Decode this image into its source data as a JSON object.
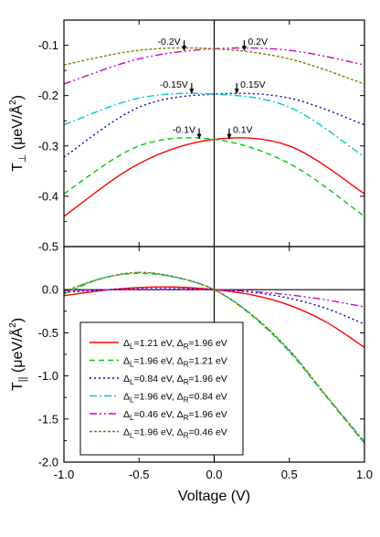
{
  "chart_data": [
    {
      "type": "line",
      "title": "",
      "xlabel": "",
      "ylabel": "T⊥ (μeV/Å²)",
      "ylabel_parts": {
        "main": "T",
        "sub": "⊥",
        "unit": " (μeV/Å",
        "sup": "2",
        "close": ")"
      },
      "xlim": [
        -1.0,
        1.0
      ],
      "ylim": [
        -0.5,
        -0.05
      ],
      "yticks": [
        -0.1,
        -0.2,
        -0.3,
        -0.4,
        -0.5
      ],
      "ytick_labels": [
        "-0.1",
        "-0.2",
        "-0.3",
        "-0.4",
        "-0.5"
      ],
      "x": [
        -1.0,
        -0.5,
        0.0,
        0.5,
        1.0
      ],
      "series": [
        {
          "id": "s1",
          "values": [
            -0.44,
            -0.335,
            -0.287,
            -0.3,
            -0.395
          ]
        },
        {
          "id": "s2",
          "values": [
            -0.395,
            -0.3,
            -0.287,
            -0.335,
            -0.44
          ]
        },
        {
          "id": "s3",
          "values": [
            -0.322,
            -0.223,
            -0.197,
            -0.205,
            -0.258
          ]
        },
        {
          "id": "s4",
          "values": [
            -0.258,
            -0.205,
            -0.197,
            -0.223,
            -0.322
          ]
        },
        {
          "id": "s5",
          "values": [
            -0.177,
            -0.127,
            -0.107,
            -0.11,
            -0.139
          ]
        },
        {
          "id": "s6",
          "values": [
            -0.139,
            -0.11,
            -0.107,
            -0.127,
            -0.177
          ]
        }
      ],
      "annotations": [
        {
          "text": "-0.2V",
          "x": -0.2,
          "y": -0.112,
          "side": "left"
        },
        {
          "text": "0.2V",
          "x": 0.2,
          "y": -0.112,
          "side": "right"
        },
        {
          "text": "-0.15V",
          "x": -0.15,
          "y": -0.197,
          "side": "left"
        },
        {
          "text": "0.15V",
          "x": 0.15,
          "y": -0.197,
          "side": "right"
        },
        {
          "text": "-0.1V",
          "x": -0.1,
          "y": -0.287,
          "side": "left"
        },
        {
          "text": "0.1V",
          "x": 0.1,
          "y": -0.287,
          "side": "right"
        }
      ]
    },
    {
      "type": "line",
      "title": "",
      "xlabel": "Voltage (V)",
      "ylabel": "T|| (μeV/Å²)",
      "ylabel_parts": {
        "main": "T",
        "sub": "||",
        "unit": " (μeV/Å",
        "sup": "2",
        "close": ")"
      },
      "xlim": [
        -1.0,
        1.0
      ],
      "ylim": [
        -2.0,
        0.5
      ],
      "xticks": [
        -1.0,
        -0.5,
        0.0,
        0.5,
        1.0
      ],
      "xtick_labels": [
        "-1.0",
        "-0.5",
        "0.0",
        "0.5",
        "1.0"
      ],
      "yticks": [
        0.0,
        -0.5,
        -1.0,
        -1.5,
        -2.0
      ],
      "ytick_labels": [
        "0.0",
        "-0.5",
        "-1.0",
        "-1.5",
        "-2.0"
      ],
      "x": [
        -1.0,
        -0.75,
        -0.5,
        -0.25,
        0.0,
        0.25,
        0.5,
        0.75,
        1.0
      ],
      "series": [
        {
          "id": "s1",
          "values": [
            -0.07,
            -0.01,
            0.025,
            0.03,
            0.0,
            -0.06,
            -0.18,
            -0.38,
            -0.67
          ]
        },
        {
          "id": "s2",
          "values": [
            -0.05,
            0.13,
            0.19,
            0.14,
            0.0,
            -0.3,
            -0.72,
            -1.25,
            -1.78
          ]
        },
        {
          "id": "s3",
          "values": [
            -0.03,
            -0.005,
            0.01,
            0.01,
            0.0,
            -0.03,
            -0.1,
            -0.22,
            -0.4
          ]
        },
        {
          "id": "s4",
          "values": [
            -0.02,
            0.13,
            0.2,
            0.14,
            0.0,
            -0.29,
            -0.71,
            -1.24,
            -1.76
          ]
        },
        {
          "id": "s5",
          "values": [
            -0.01,
            -0.002,
            0.004,
            0.004,
            0.0,
            -0.02,
            -0.06,
            -0.12,
            -0.2
          ]
        },
        {
          "id": "s6",
          "values": [
            -0.02,
            0.13,
            0.2,
            0.145,
            0.0,
            -0.29,
            -0.7,
            -1.24,
            -1.78
          ]
        }
      ],
      "legend": {
        "placement": "lower-left",
        "entries": [
          {
            "id": "s1",
            "L": "1.21 eV",
            "R": "1.96 eV"
          },
          {
            "id": "s2",
            "L": "1.96 eV",
            "R": "1.21 eV"
          },
          {
            "id": "s3",
            "L": "0.84 eV",
            "R": "1.96 eV"
          },
          {
            "id": "s4",
            "L": "1.96 eV",
            "R": "0.84 eV"
          },
          {
            "id": "s5",
            "L": "0.46 eV",
            "R": "1.96 eV"
          },
          {
            "id": "s6",
            "L": "1.96 eV",
            "R": "0.46 eV"
          }
        ]
      }
    }
  ],
  "series_style": {
    "s1": {
      "color": "#ff0000",
      "dash": "solid"
    },
    "s2": {
      "color": "#00cc00",
      "dash": "dash"
    },
    "s3": {
      "color": "#0000cc",
      "dash": "dot"
    },
    "s4": {
      "color": "#00cccc",
      "dash": "dashdot"
    },
    "s5": {
      "color": "#cc00cc",
      "dash": "dashdotdot"
    },
    "s6": {
      "color": "#808000",
      "dash": "shortdot"
    }
  }
}
